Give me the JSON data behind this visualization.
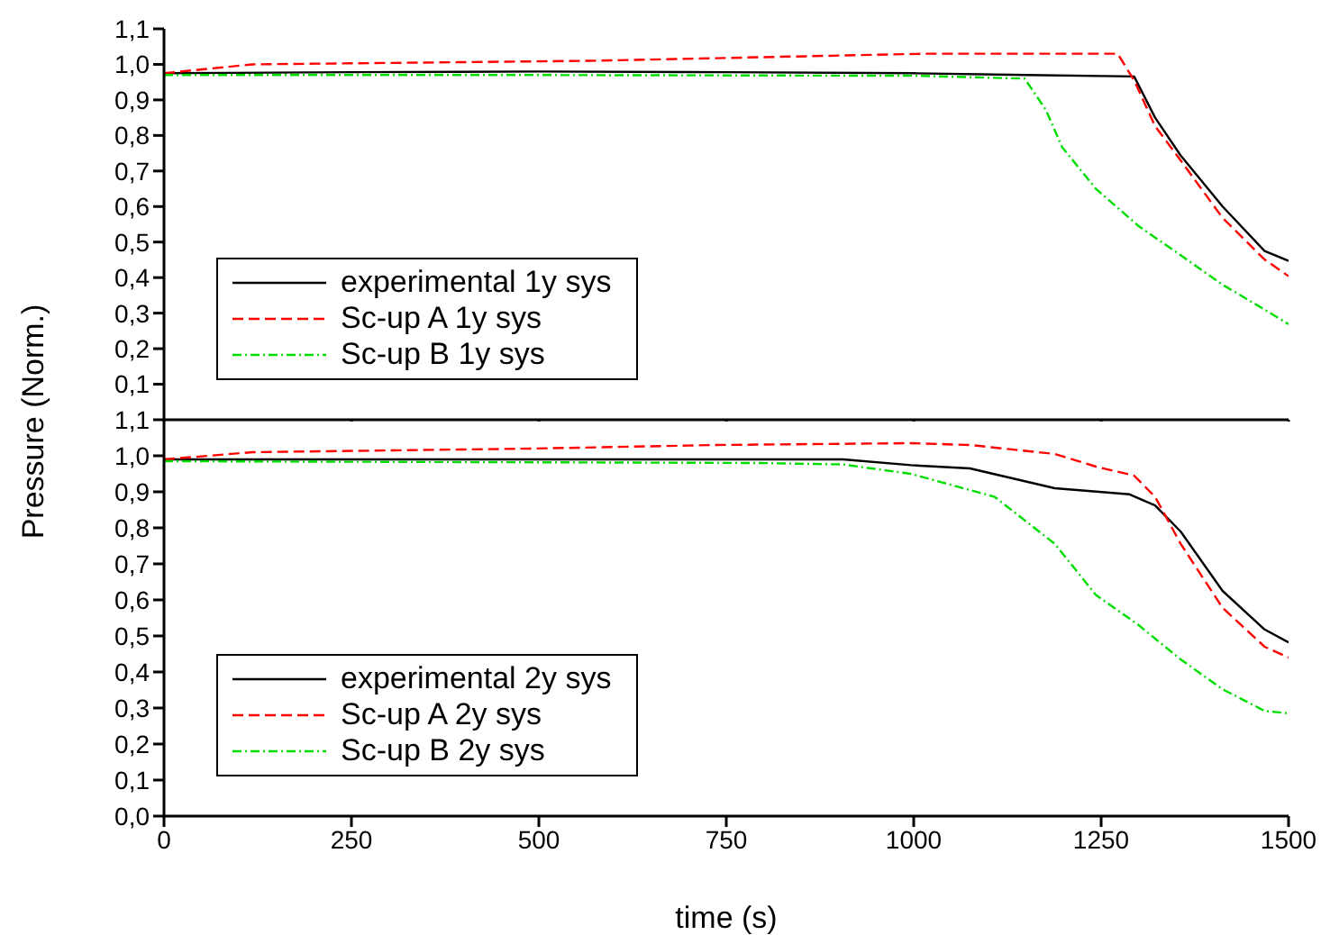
{
  "chart_data": [
    {
      "type": "line",
      "ylabel": "Pressure (Norm.)",
      "xlim": [
        0,
        1500
      ],
      "xticks": [
        0,
        250,
        500,
        750,
        1000,
        1250,
        1500
      ],
      "ylim": [
        0,
        1.1
      ],
      "yticks": [
        {
          "value": 0.1,
          "label": "0,1"
        },
        {
          "value": 0.2,
          "label": "0,2"
        },
        {
          "value": 0.3,
          "label": "0,3"
        },
        {
          "value": 0.4,
          "label": "0,4"
        },
        {
          "value": 0.5,
          "label": "0,5"
        },
        {
          "value": 0.6,
          "label": "0,6"
        },
        {
          "value": 0.7,
          "label": "0,7"
        },
        {
          "value": 0.8,
          "label": "0,8"
        },
        {
          "value": 0.9,
          "label": "0,9"
        },
        {
          "value": 1.0,
          "label": "1,0"
        },
        {
          "value": 1.1,
          "label": "1,1"
        }
      ],
      "tick_labels": "y",
      "legend": "bottom left",
      "marker": "none",
      "series": [
        {
          "name": "experimental 1y sys",
          "color": "#000000",
          "line_style": "solid",
          "x": [
            0,
            250,
            500,
            750,
            1000,
            1150,
            1294,
            1322,
            1356,
            1412,
            1468,
            1500
          ],
          "values": [
            0.975,
            0.978,
            0.98,
            0.978,
            0.975,
            0.97,
            0.966,
            0.85,
            0.744,
            0.6,
            0.475,
            0.447
          ]
        },
        {
          "name": "Sc-up A 1y sys",
          "color": "#ff0000",
          "line_style": "dashed",
          "x": [
            0,
            118,
            568,
            1018,
            1272,
            1294,
            1322,
            1356,
            1412,
            1468,
            1500
          ],
          "values": [
            0.975,
            1.0,
            1.01,
            1.03,
            1.03,
            0.955,
            0.826,
            0.73,
            0.568,
            0.451,
            0.404
          ]
        },
        {
          "name": "Sc-up B 1y sys",
          "color": "#00dd00",
          "line_style": "dotted",
          "x": [
            0,
            500,
            1000,
            1148,
            1176,
            1198,
            1243,
            1300,
            1356,
            1412,
            1468,
            1500
          ],
          "values": [
            0.97,
            0.97,
            0.968,
            0.96,
            0.873,
            0.767,
            0.65,
            0.545,
            0.463,
            0.38,
            0.31,
            0.269
          ]
        }
      ]
    },
    {
      "type": "line",
      "xlabel": "time (s)",
      "xlim": [
        0,
        1500
      ],
      "xticks": [
        0,
        250,
        500,
        750,
        1000,
        1250,
        1500
      ],
      "ylim": [
        0,
        1.1
      ],
      "yticks": [
        {
          "value": 0,
          "label": "0,0"
        },
        {
          "value": 0.1,
          "label": "0,1"
        },
        {
          "value": 0.2,
          "label": "0,2"
        },
        {
          "value": 0.3,
          "label": "0,3"
        },
        {
          "value": 0.4,
          "label": "0,4"
        },
        {
          "value": 0.5,
          "label": "0,5"
        },
        {
          "value": 0.6,
          "label": "0,6"
        },
        {
          "value": 0.7,
          "label": "0,7"
        },
        {
          "value": 0.8,
          "label": "0,8"
        },
        {
          "value": 0.9,
          "label": "0,9"
        },
        {
          "value": 1.0,
          "label": "1,0"
        },
        {
          "value": 1.1,
          "label": "1,1"
        }
      ],
      "legend": "bottom left",
      "marker": "none",
      "series": [
        {
          "name": "experimental 2y sys",
          "color": "#000000",
          "line_style": "solid",
          "x": [
            0,
            250,
            500,
            750,
            906,
            996,
            1075,
            1188,
            1288,
            1322,
            1356,
            1412,
            1468,
            1500
          ],
          "values": [
            0.99,
            0.99,
            0.99,
            0.99,
            0.99,
            0.974,
            0.965,
            0.91,
            0.893,
            0.862,
            0.79,
            0.625,
            0.518,
            0.482
          ]
        },
        {
          "name": "Sc-up A 2y sys",
          "color": "#ff0000",
          "line_style": "dashed",
          "x": [
            0,
            118,
            490,
            737,
            996,
            1075,
            1188,
            1243,
            1294,
            1322,
            1356,
            1412,
            1468,
            1500
          ],
          "values": [
            0.99,
            1.01,
            1.02,
            1.03,
            1.035,
            1.03,
            1.005,
            0.97,
            0.945,
            0.886,
            0.756,
            0.578,
            0.47,
            0.44
          ]
        },
        {
          "name": "Sc-up B 2y sys",
          "color": "#00dd00",
          "line_style": "dotted",
          "x": [
            0,
            500,
            793,
            906,
            996,
            1108,
            1188,
            1243,
            1300,
            1356,
            1412,
            1468,
            1500
          ],
          "values": [
            0.985,
            0.982,
            0.98,
            0.976,
            0.95,
            0.886,
            0.756,
            0.614,
            0.53,
            0.435,
            0.352,
            0.292,
            0.285
          ]
        }
      ]
    }
  ]
}
